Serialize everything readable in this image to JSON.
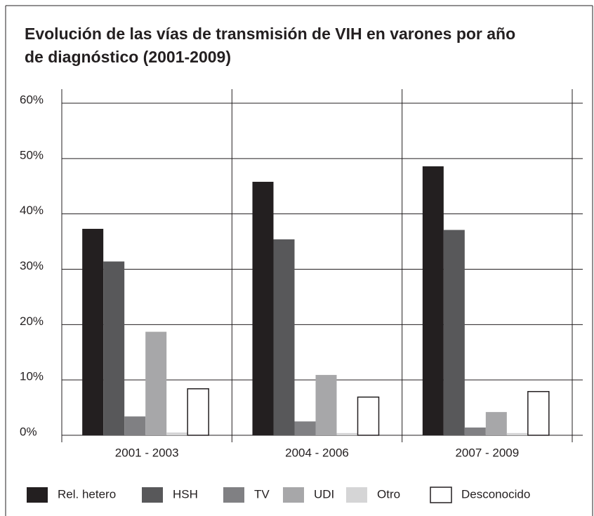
{
  "chart_data": {
    "type": "bar",
    "title": "Evolución de las vías de transmisión de VIH en varones por año",
    "subtitle": "de diagnóstico (2001-2009)",
    "categories": [
      "2001 - 2003",
      "2004 - 2006",
      "2007 - 2009"
    ],
    "series": [
      {
        "name": "Rel. hetero",
        "color": "#231f20",
        "values": [
          37.3,
          45.8,
          48.6
        ]
      },
      {
        "name": "HSH",
        "color": "#58585a",
        "values": [
          31.4,
          35.4,
          37.1
        ]
      },
      {
        "name": "TV",
        "color": "#808083",
        "values": [
          3.4,
          2.5,
          1.4
        ]
      },
      {
        "name": "UDI",
        "color": "#a7a7a9",
        "values": [
          18.7,
          10.9,
          4.2
        ]
      },
      {
        "name": "Otro",
        "color": "#d5d5d6",
        "values": [
          0.5,
          0.4,
          0.4
        ]
      },
      {
        "name": "Desconocido",
        "color": "#ffffff",
        "values": [
          8.4,
          6.9,
          7.9
        ]
      }
    ],
    "ylim": [
      0,
      60
    ],
    "yticks": [
      {
        "value": 0,
        "label": "0%"
      },
      {
        "value": 10,
        "label": "10%"
      },
      {
        "value": 20,
        "label": "20%"
      },
      {
        "value": 30,
        "label": "30%"
      },
      {
        "value": 40,
        "label": "40%"
      },
      {
        "value": 50,
        "label": "50%"
      },
      {
        "value": 60,
        "label": "60%"
      }
    ],
    "grid": true,
    "legend": "bottom"
  }
}
